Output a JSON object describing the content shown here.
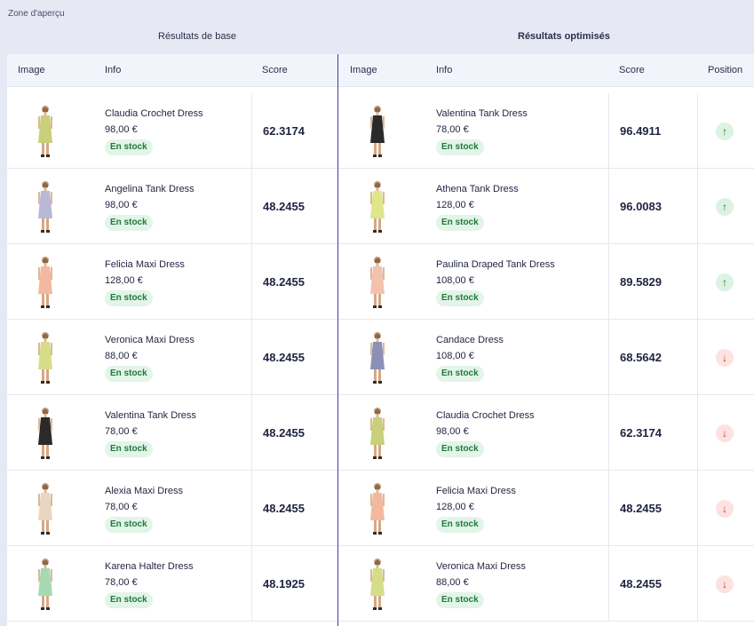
{
  "zone_label": "Zone d'aperçu",
  "columns": {
    "base_title": "Résultats de base",
    "optimized_title": "Résultats optimisés",
    "image": "Image",
    "info": "Info",
    "score": "Score",
    "position": "Position"
  },
  "colors": {
    "stock_bg": "#e3f4e8",
    "stock_text": "#1f7a3d",
    "up": "#1f7a3d",
    "down": "#c0392b",
    "divider": "#3b3fa0"
  },
  "base_results": [
    {
      "name": "Claudia Crochet Dress",
      "price": "98,00 €",
      "stock": "En stock",
      "score": "62.3174",
      "dress": "#c9cf7a"
    },
    {
      "name": "Angelina Tank Dress",
      "price": "98,00 €",
      "stock": "En stock",
      "score": "48.2455",
      "dress": "#b9b8d6"
    },
    {
      "name": "Felicia Maxi Dress",
      "price": "128,00 €",
      "stock": "En stock",
      "score": "48.2455",
      "dress": "#f2b9a0"
    },
    {
      "name": "Veronica Maxi Dress",
      "price": "88,00 €",
      "stock": "En stock",
      "score": "48.2455",
      "dress": "#d6dd88"
    },
    {
      "name": "Valentina Tank Dress",
      "price": "78,00 €",
      "stock": "En stock",
      "score": "48.2455",
      "dress": "#2a2a2a"
    },
    {
      "name": "Alexia Maxi Dress",
      "price": "78,00 €",
      "stock": "En stock",
      "score": "48.2455",
      "dress": "#e8d6c0"
    },
    {
      "name": "Karena Halter Dress",
      "price": "78,00 €",
      "stock": "En stock",
      "score": "48.1925",
      "dress": "#a6d9b2"
    }
  ],
  "optimized_results": [
    {
      "name": "Valentina Tank Dress",
      "price": "78,00 €",
      "stock": "En stock",
      "score": "96.4911",
      "position": "up",
      "dress": "#2a2a2a"
    },
    {
      "name": "Athena Tank Dress",
      "price": "128,00 €",
      "stock": "En stock",
      "score": "96.0083",
      "position": "up",
      "dress": "#dfe58a"
    },
    {
      "name": "Paulina Draped Tank Dress",
      "price": "108,00 €",
      "stock": "En stock",
      "score": "89.5829",
      "position": "up",
      "dress": "#f2c2ae"
    },
    {
      "name": "Candace Dress",
      "price": "108,00 €",
      "stock": "En stock",
      "score": "68.5642",
      "position": "down",
      "dress": "#8b90b8"
    },
    {
      "name": "Claudia Crochet Dress",
      "price": "98,00 €",
      "stock": "En stock",
      "score": "62.3174",
      "position": "down",
      "dress": "#c9cf7a"
    },
    {
      "name": "Felicia Maxi Dress",
      "price": "128,00 €",
      "stock": "En stock",
      "score": "48.2455",
      "position": "down",
      "dress": "#f2b9a0"
    },
    {
      "name": "Veronica Maxi Dress",
      "price": "88,00 €",
      "stock": "En stock",
      "score": "48.2455",
      "position": "down",
      "dress": "#d6dd88"
    }
  ]
}
